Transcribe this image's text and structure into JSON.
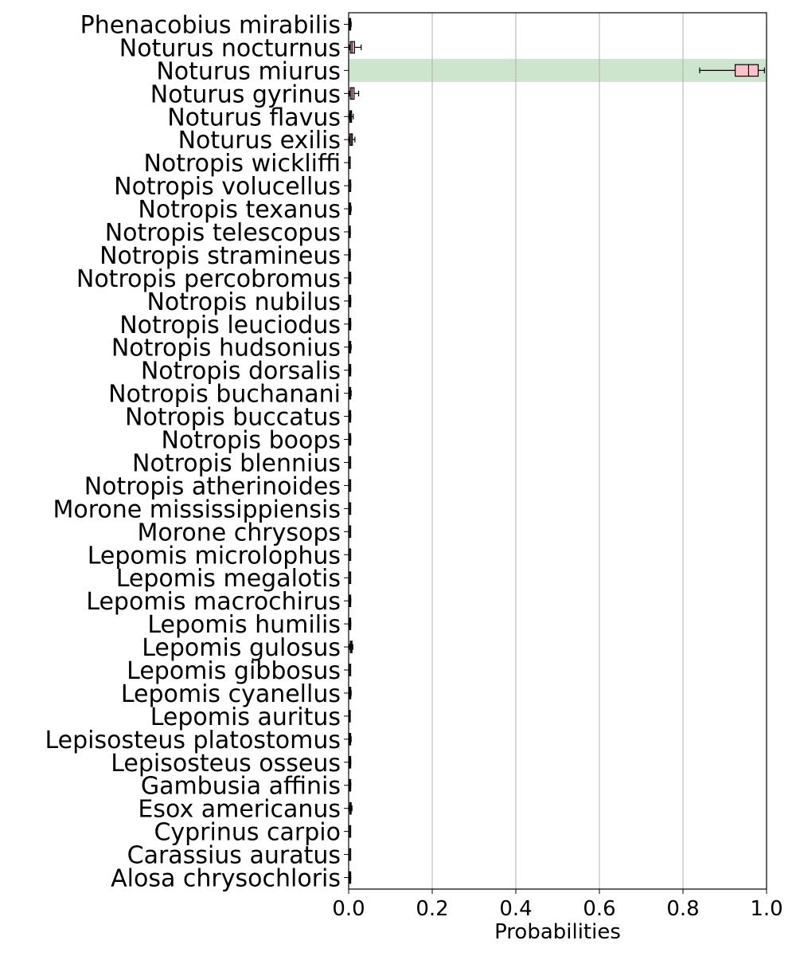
{
  "chart_data": {
    "type": "boxplot",
    "orientation": "horizontal",
    "title": "",
    "xlabel": "Probabilities",
    "ylabel": "",
    "xlim": [
      0.0,
      1.0
    ],
    "xticks": [
      0.0,
      0.2,
      0.4,
      0.6,
      0.8,
      1.0
    ],
    "xtick_labels": [
      "0.0",
      "0.2",
      "0.4",
      "0.6",
      "0.8",
      "1.0"
    ],
    "grid": "vertical",
    "highlighted_category": "Noturus miurus",
    "highlight_color": "#cce5cc",
    "box_color": "#ffc0cb",
    "categories": [
      "Phenacobius mirabilis",
      "Noturus nocturnus",
      "Noturus miurus",
      "Noturus gyrinus",
      "Noturus flavus",
      "Noturus exilis",
      "Notropis wickliffi",
      "Notropis volucellus",
      "Notropis texanus",
      "Notropis telescopus",
      "Notropis stramineus",
      "Notropis percobromus",
      "Notropis nubilus",
      "Notropis leuciodus",
      "Notropis hudsonius",
      "Notropis dorsalis",
      "Notropis buchanani",
      "Notropis buccatus",
      "Notropis boops",
      "Notropis blennius",
      "Notropis atherinoides",
      "Morone mississippiensis",
      "Morone chrysops",
      "Lepomis microlophus",
      "Lepomis megalotis",
      "Lepomis macrochirus",
      "Lepomis humilis",
      "Lepomis gulosus",
      "Lepomis gibbosus",
      "Lepomis cyanellus",
      "Lepomis auritus",
      "Lepisosteus platostomus",
      "Lepisosteus osseus",
      "Gambusia affinis",
      "Esox americanus",
      "Cyprinus carpio",
      "Carassius auratus",
      "Alosa chrysochloris"
    ],
    "boxes": [
      {
        "whislo": 0.001,
        "q1": 0.002,
        "med": 0.003,
        "q3": 0.004,
        "whishi": 0.006
      },
      {
        "whislo": 0.002,
        "q1": 0.004,
        "med": 0.008,
        "q3": 0.014,
        "whishi": 0.03
      },
      {
        "whislo": 0.84,
        "q1": 0.925,
        "med": 0.957,
        "q3": 0.98,
        "whishi": 0.995
      },
      {
        "whislo": 0.002,
        "q1": 0.004,
        "med": 0.008,
        "q3": 0.013,
        "whishi": 0.024
      },
      {
        "whislo": 0.001,
        "q1": 0.003,
        "med": 0.005,
        "q3": 0.007,
        "whishi": 0.011
      },
      {
        "whislo": 0.001,
        "q1": 0.003,
        "med": 0.006,
        "q3": 0.009,
        "whishi": 0.015
      },
      {
        "whislo": 0.0,
        "q1": 0.001,
        "med": 0.001,
        "q3": 0.002,
        "whishi": 0.003
      },
      {
        "whislo": 0.001,
        "q1": 0.002,
        "med": 0.002,
        "q3": 0.003,
        "whishi": 0.005
      },
      {
        "whislo": 0.001,
        "q1": 0.002,
        "med": 0.003,
        "q3": 0.004,
        "whishi": 0.006
      },
      {
        "whislo": 0.001,
        "q1": 0.001,
        "med": 0.002,
        "q3": 0.003,
        "whishi": 0.004
      },
      {
        "whislo": 0.001,
        "q1": 0.001,
        "med": 0.002,
        "q3": 0.003,
        "whishi": 0.004
      },
      {
        "whislo": 0.001,
        "q1": 0.002,
        "med": 0.003,
        "q3": 0.004,
        "whishi": 0.005
      },
      {
        "whislo": 0.001,
        "q1": 0.002,
        "med": 0.003,
        "q3": 0.004,
        "whishi": 0.005
      },
      {
        "whislo": 0.001,
        "q1": 0.002,
        "med": 0.003,
        "q3": 0.004,
        "whishi": 0.005
      },
      {
        "whislo": 0.001,
        "q1": 0.002,
        "med": 0.003,
        "q3": 0.004,
        "whishi": 0.006
      },
      {
        "whislo": 0.001,
        "q1": 0.002,
        "med": 0.003,
        "q3": 0.004,
        "whishi": 0.005
      },
      {
        "whislo": 0.001,
        "q1": 0.002,
        "med": 0.003,
        "q3": 0.004,
        "whishi": 0.006
      },
      {
        "whislo": 0.001,
        "q1": 0.002,
        "med": 0.003,
        "q3": 0.004,
        "whishi": 0.005
      },
      {
        "whislo": 0.001,
        "q1": 0.002,
        "med": 0.003,
        "q3": 0.004,
        "whishi": 0.005
      },
      {
        "whislo": 0.001,
        "q1": 0.002,
        "med": 0.002,
        "q3": 0.003,
        "whishi": 0.004
      },
      {
        "whislo": 0.001,
        "q1": 0.002,
        "med": 0.002,
        "q3": 0.003,
        "whishi": 0.004
      },
      {
        "whislo": 0.001,
        "q1": 0.002,
        "med": 0.002,
        "q3": 0.003,
        "whishi": 0.004
      },
      {
        "whislo": 0.001,
        "q1": 0.002,
        "med": 0.002,
        "q3": 0.003,
        "whishi": 0.004
      },
      {
        "whislo": 0.001,
        "q1": 0.002,
        "med": 0.002,
        "q3": 0.003,
        "whishi": 0.004
      },
      {
        "whislo": 0.001,
        "q1": 0.002,
        "med": 0.002,
        "q3": 0.003,
        "whishi": 0.004
      },
      {
        "whislo": 0.001,
        "q1": 0.002,
        "med": 0.003,
        "q3": 0.004,
        "whishi": 0.005
      },
      {
        "whislo": 0.001,
        "q1": 0.002,
        "med": 0.003,
        "q3": 0.004,
        "whishi": 0.005
      },
      {
        "whislo": 0.002,
        "q1": 0.004,
        "med": 0.006,
        "q3": 0.008,
        "whishi": 0.01
      },
      {
        "whislo": 0.001,
        "q1": 0.002,
        "med": 0.002,
        "q3": 0.003,
        "whishi": 0.004
      },
      {
        "whislo": 0.001,
        "q1": 0.002,
        "med": 0.003,
        "q3": 0.005,
        "whishi": 0.006
      },
      {
        "whislo": 0.001,
        "q1": 0.001,
        "med": 0.002,
        "q3": 0.003,
        "whishi": 0.003
      },
      {
        "whislo": 0.001,
        "q1": 0.002,
        "med": 0.003,
        "q3": 0.004,
        "whishi": 0.006
      },
      {
        "whislo": 0.001,
        "q1": 0.002,
        "med": 0.003,
        "q3": 0.004,
        "whishi": 0.005
      },
      {
        "whislo": 0.001,
        "q1": 0.002,
        "med": 0.003,
        "q3": 0.004,
        "whishi": 0.005
      },
      {
        "whislo": 0.002,
        "q1": 0.003,
        "med": 0.005,
        "q3": 0.006,
        "whishi": 0.008
      },
      {
        "whislo": 0.001,
        "q1": 0.002,
        "med": 0.002,
        "q3": 0.003,
        "whishi": 0.004
      },
      {
        "whislo": 0.001,
        "q1": 0.002,
        "med": 0.002,
        "q3": 0.003,
        "whishi": 0.004
      },
      {
        "whislo": 0.001,
        "q1": 0.002,
        "med": 0.003,
        "q3": 0.004,
        "whishi": 0.005
      }
    ]
  }
}
